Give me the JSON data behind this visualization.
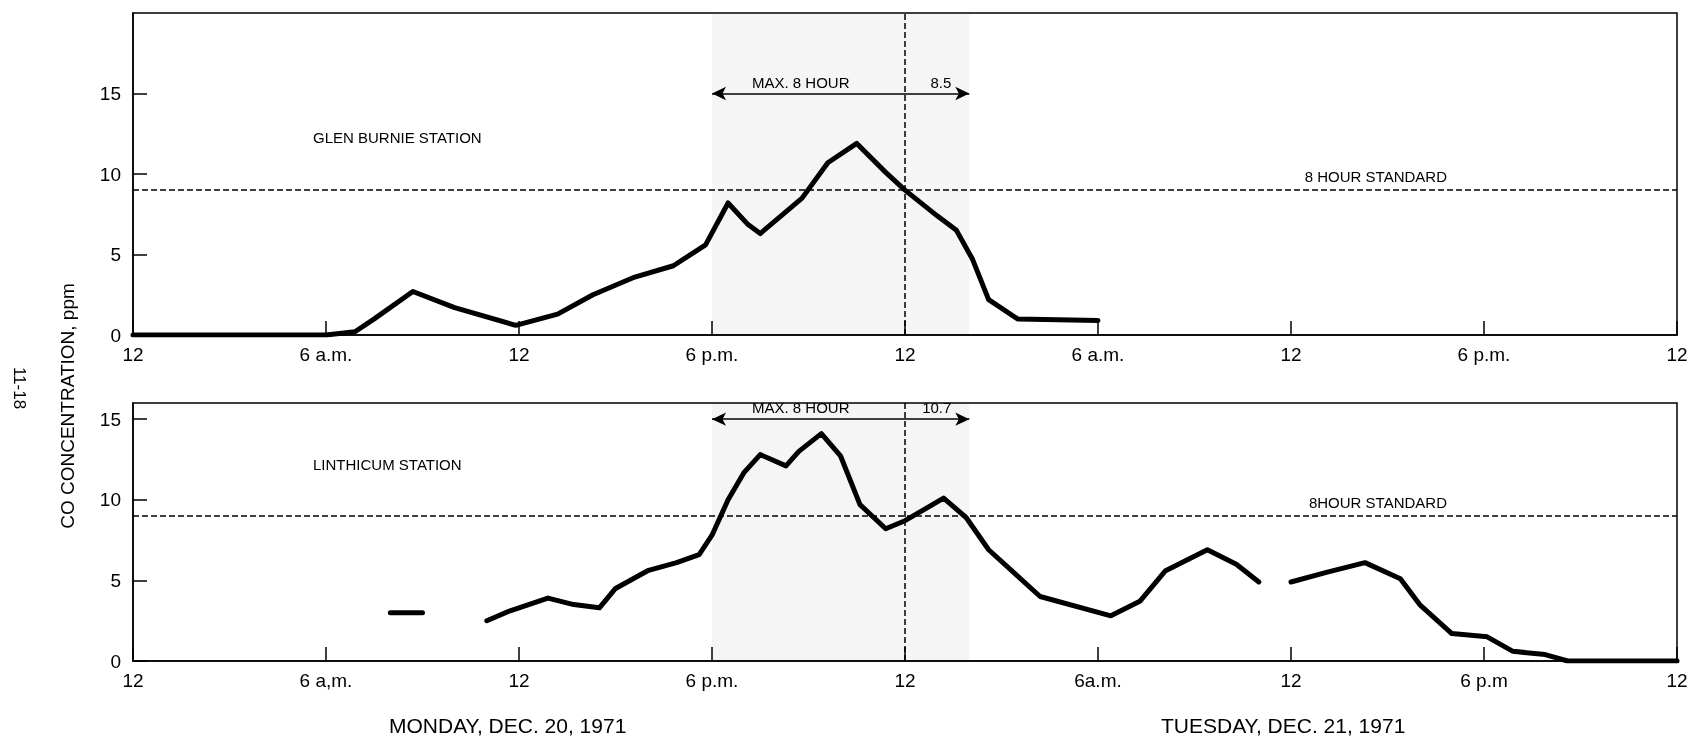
{
  "chart_data": [
    {
      "type": "line",
      "title": "GLEN BURNIE STATION",
      "ylabel": "CO CONCENTRATION, ppm",
      "x": [
        "1971-12-20T00:00",
        "1971-12-20T06:00",
        "1971-12-20T06:54",
        "1971-12-20T07:30",
        "1971-12-20T08:42",
        "1971-12-20T10:00",
        "1971-12-20T11:54",
        "1971-12-20T13:12",
        "1971-12-20T14:18",
        "1971-12-20T15:36",
        "1971-12-20T16:48",
        "1971-12-20T17:48",
        "1971-12-20T18:30",
        "1971-12-20T19:06",
        "1971-12-20T19:30",
        "1971-12-20T20:48",
        "1971-12-20T21:36",
        "1971-12-20T22:30",
        "1971-12-20T23:24",
        "1971-12-21T00:00",
        "1971-12-21T01:00",
        "1971-12-21T01:36",
        "1971-12-21T02:06",
        "1971-12-21T02:36",
        "1971-12-21T03:30",
        "1971-12-21T06:00"
      ],
      "values": [
        0,
        0,
        0.2,
        1.0,
        2.7,
        1.7,
        0.6,
        1.3,
        2.5,
        3.6,
        4.3,
        5.6,
        8.2,
        6.9,
        6.3,
        8.5,
        10.7,
        11.9,
        10.1,
        9.0,
        7.4,
        6.5,
        4.7,
        2.2,
        1.0,
        0.9
      ],
      "color": "#000000",
      "xlim": [
        "1971-12-20T00:00",
        "1971-12-22T00:00"
      ],
      "ylim": [
        0,
        20
      ],
      "xticks": [
        {
          "value": "1971-12-20T00:00",
          "label": "12"
        },
        {
          "value": "1971-12-20T06:00",
          "label": "6 a.m."
        },
        {
          "value": "1971-12-20T12:00",
          "label": "12"
        },
        {
          "value": "1971-12-20T18:00",
          "label": "6 p.m."
        },
        {
          "value": "1971-12-21T00:00",
          "label": "12"
        },
        {
          "value": "1971-12-21T06:00",
          "label": "6 a.m."
        },
        {
          "value": "1971-12-21T12:00",
          "label": "12"
        },
        {
          "value": "1971-12-21T18:00",
          "label": "6 p.m."
        },
        {
          "value": "1971-12-22T00:00",
          "label": "12"
        }
      ],
      "yticks": [
        0,
        5,
        10,
        15
      ],
      "ref_lines": [
        {
          "axis": "y",
          "value": 9,
          "label": "8 HOUR STANDARD",
          "line_style": "dashed"
        },
        {
          "axis": "x",
          "value": "1971-12-21T00:00",
          "label": null,
          "line_style": "dashed"
        }
      ],
      "bands": [
        {
          "axis": "x",
          "from": "1971-12-20T18:00",
          "to": "1971-12-21T02:00",
          "label": "MAX. 8 HOUR"
        }
      ],
      "annotations": [
        {
          "text": "8.5",
          "x": "1971-12-21T02:00",
          "y": 15
        },
        "11-18"
      ]
    },
    {
      "type": "line",
      "title": "LINTHICUM STATION",
      "x": [
        "1971-12-20T08:00",
        "1971-12-20T09:00",
        "1971-12-20T10:00",
        "1971-12-20T11:00",
        "1971-12-20T11:42",
        "1971-12-20T12:54",
        "1971-12-20T13:42",
        "1971-12-20T14:30",
        "1971-12-20T15:00",
        "1971-12-20T16:00",
        "1971-12-20T16:54",
        "1971-12-20T17:36",
        "1971-12-20T18:00",
        "1971-12-20T18:30",
        "1971-12-20T19:00",
        "1971-12-20T19:30",
        "1971-12-20T20:18",
        "1971-12-20T20:42",
        "1971-12-20T21:24",
        "1971-12-20T22:00",
        "1971-12-20T22:36",
        "1971-12-20T23:24",
        "1971-12-21T00:00",
        "1971-12-21T01:12",
        "1971-12-21T01:54",
        "1971-12-21T02:36",
        "1971-12-21T04:12",
        "1971-12-21T06:24",
        "1971-12-21T07:18",
        "1971-12-21T08:06",
        "1971-12-21T09:24",
        "1971-12-21T10:18",
        "1971-12-21T11:00",
        "1971-12-21T11:30",
        "1971-12-21T12:00",
        "1971-12-21T13:06",
        "1971-12-21T14:18",
        "1971-12-21T15:24",
        "1971-12-21T16:00",
        "1971-12-21T17:00",
        "1971-12-21T18:06",
        "1971-12-21T18:54",
        "1971-12-21T19:54",
        "1971-12-21T20:36",
        "1971-12-22T00:00"
      ],
      "values": [
        3.0,
        3.0,
        null,
        2.5,
        3.1,
        3.9,
        3.5,
        3.3,
        4.5,
        5.6,
        6.1,
        6.6,
        7.8,
        10.0,
        11.7,
        12.8,
        12.1,
        13.0,
        14.1,
        12.7,
        9.7,
        8.2,
        8.7,
        10.1,
        8.9,
        6.9,
        4.0,
        2.8,
        3.7,
        5.6,
        6.9,
        6.0,
        4.9,
        null,
        4.9,
        5.5,
        6.1,
        5.1,
        3.5,
        1.7,
        1.5,
        0.6,
        0.4,
        0,
        0
      ],
      "color": "#000000",
      "xlim": [
        "1971-12-20T00:00",
        "1971-12-22T00:00"
      ],
      "ylim": [
        0,
        16
      ],
      "xticks": [
        {
          "value": "1971-12-20T00:00",
          "label": "12"
        },
        {
          "value": "1971-12-20T06:00",
          "label": "6 a,m."
        },
        {
          "value": "1971-12-20T12:00",
          "label": "12"
        },
        {
          "value": "1971-12-20T18:00",
          "label": "6 p.m."
        },
        {
          "value": "1971-12-21T00:00",
          "label": "12"
        },
        {
          "value": "1971-12-21T06:00",
          "label": "6a.m."
        },
        {
          "value": "1971-12-21T12:00",
          "label": "12"
        },
        {
          "value": "1971-12-21T18:00",
          "label": "6 p.m"
        },
        {
          "value": "1971-12-22T00:00",
          "label": "12"
        }
      ],
      "yticks": [
        0,
        5,
        10,
        15
      ],
      "ref_lines": [
        {
          "axis": "y",
          "value": 9,
          "label": "8HOUR STANDARD",
          "line_style": "dashed"
        },
        {
          "axis": "x",
          "value": "1971-12-21T00:00",
          "label": null,
          "line_style": "dashed"
        }
      ],
      "bands": [
        {
          "axis": "x",
          "from": "1971-12-20T18:00",
          "to": "1971-12-21T02:00",
          "label": "MAX. 8 HOUR"
        }
      ],
      "annotations": [
        {
          "text": "10.7",
          "x": "1971-12-21T02:00",
          "y": 15
        },
        "MONDAY, DEC. 20, 1971",
        "TUESDAY, DEC. 21, 1971"
      ]
    }
  ]
}
